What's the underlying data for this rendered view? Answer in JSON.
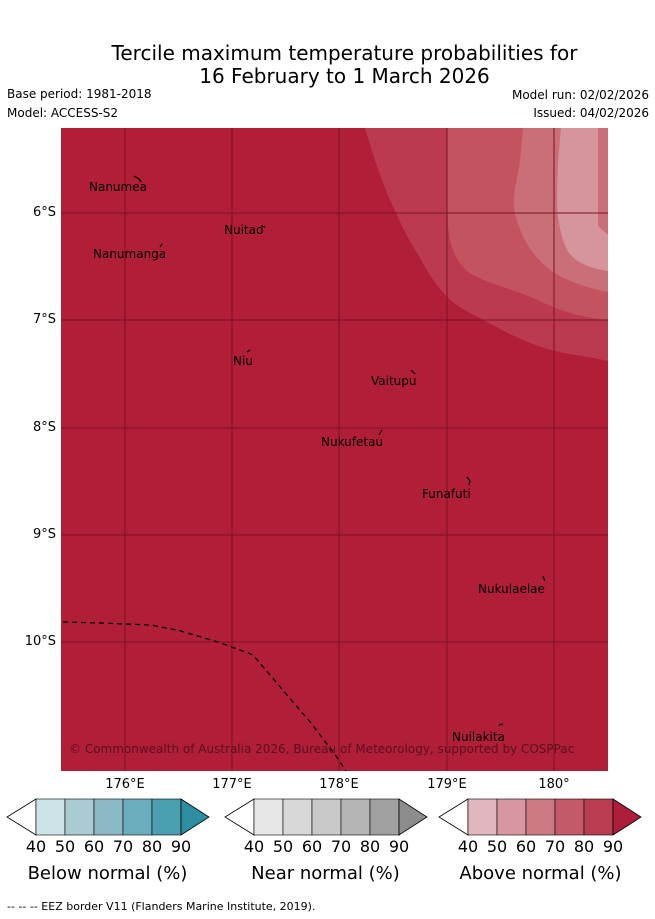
{
  "title_line1": "Tercile maximum temperature probabilities for",
  "title_line2": "16 February to 1 March 2026",
  "base_period": "Base period: 1981-2018",
  "model": "Model: ACCESS-S2",
  "model_run": "Model run: 02/02/2026",
  "issued": "Issued: 04/02/2026",
  "map": {
    "latitude_labels": [
      "6°S",
      "7°S",
      "8°S",
      "9°S",
      "10°S"
    ],
    "longitude_labels": [
      "176°E",
      "177°E",
      "178°E",
      "179°E",
      "180°"
    ],
    "places": {
      "nanumea": "Nanumea",
      "nuitao": "Nuitao",
      "nanumanga": "Nanumanga",
      "niu": "Niu",
      "vaitupu": "Vaitupu",
      "nukufetau": "Nukufetau",
      "funafuti": "Funafuti",
      "nukulaelae": "Nukulaelae",
      "nuilakita": "Nuilakita"
    },
    "copyright": "© Commonwealth of Australia 2026, Bureau of Meteorology, supported by COSPPac",
    "base_color": "#b01e37"
  },
  "colorbars": {
    "below": {
      "label": "Below normal (%)",
      "ticks": [
        "40",
        "50",
        "60",
        "70",
        "80",
        "90"
      ],
      "colors": [
        "#ffffff",
        "#cde3e8",
        "#aacbd2",
        "#8bb9c6",
        "#6aaebd",
        "#4a9fb1",
        "#2d8ea2"
      ]
    },
    "near": {
      "label": "Near normal (%)",
      "ticks": [
        "40",
        "50",
        "60",
        "70",
        "80",
        "90"
      ],
      "colors": [
        "#ffffff",
        "#e6e6e6",
        "#d7d7d7",
        "#c8c8c8",
        "#b4b4b4",
        "#a0a0a0",
        "#8c8c8c"
      ]
    },
    "above": {
      "label": "Above normal (%)",
      "ticks": [
        "40",
        "50",
        "60",
        "70",
        "80",
        "90"
      ],
      "colors": [
        "#ffffff",
        "#e1b6bf",
        "#d7959f",
        "#cd7a85",
        "#c35a6a",
        "#b83d50",
        "#ad1e3b"
      ]
    }
  },
  "footnote": "--  --  -- EEZ border V11 (Flanders Marine Institute, 2019)."
}
